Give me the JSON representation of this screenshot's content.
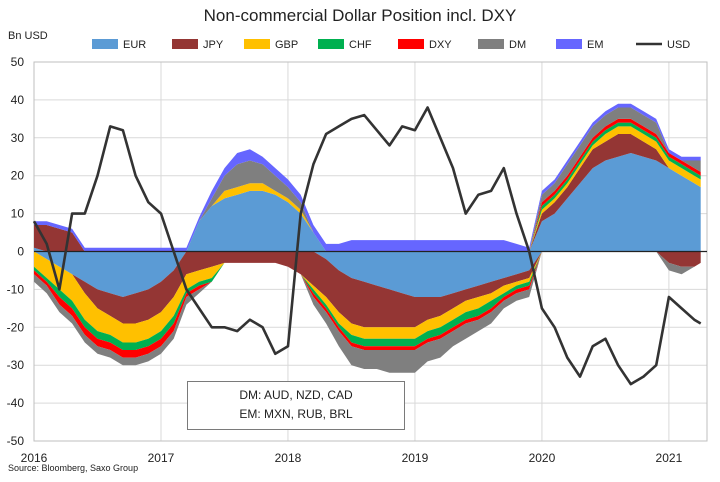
{
  "title": "Non-commercial Dollar Position incl. DXY",
  "unit_label": "Bn USD",
  "source": "Source: Bloomberg, Saxo Group",
  "note": {
    "line1": "DM: AUD, NZD, CAD",
    "line2": "EM: MXN, RUB, BRL"
  },
  "colors": {
    "EUR": "#5b9bd5",
    "JPY": "#943634",
    "GBP": "#ffc000",
    "CHF": "#00b050",
    "DXY": "#ff0000",
    "DM": "#7f7f7f",
    "EM": "#6666ff",
    "USD": "#333333"
  },
  "chart_data": {
    "type": "area",
    "title": "Non-commercial Dollar Position incl. DXY",
    "ylabel": "Bn USD",
    "ylim": [
      -50,
      50
    ],
    "yticks": [
      50,
      40,
      30,
      20,
      10,
      0,
      -10,
      -20,
      -30,
      -40,
      -50
    ],
    "xlim": [
      2016.0,
      2021.3
    ],
    "xticks": [
      {
        "value": 2016,
        "label": "2016"
      },
      {
        "value": 2017,
        "label": "2017"
      },
      {
        "value": 2018,
        "label": "2018"
      },
      {
        "value": 2019,
        "label": "2019"
      },
      {
        "value": 2020,
        "label": "2020"
      },
      {
        "value": 2021,
        "label": "2021"
      }
    ],
    "legend_position": "top",
    "stack_order": [
      "EUR",
      "JPY",
      "GBP",
      "CHF",
      "DXY",
      "DM",
      "EM"
    ],
    "x": [
      2016.0,
      2016.1,
      2016.2,
      2016.3,
      2016.4,
      2016.5,
      2016.6,
      2016.7,
      2016.8,
      2016.9,
      2017.0,
      2017.1,
      2017.2,
      2017.3,
      2017.4,
      2017.5,
      2017.6,
      2017.7,
      2017.8,
      2017.9,
      2018.0,
      2018.1,
      2018.2,
      2018.3,
      2018.4,
      2018.5,
      2018.6,
      2018.7,
      2018.8,
      2018.9,
      2019.0,
      2019.1,
      2019.2,
      2019.3,
      2019.4,
      2019.5,
      2019.6,
      2019.7,
      2019.8,
      2019.9,
      2020.0,
      2020.1,
      2020.2,
      2020.3,
      2020.4,
      2020.5,
      2020.6,
      2020.7,
      2020.8,
      2020.9,
      2021.0,
      2021.1,
      2021.2,
      2021.25
    ],
    "series": [
      {
        "name": "EUR",
        "values": [
          1,
          -2,
          -4,
          -6,
          -8,
          -10,
          -11,
          -12,
          -11,
          -10,
          -8,
          -5,
          0,
          8,
          12,
          14,
          15,
          16,
          16,
          15,
          13,
          10,
          5,
          -2,
          -5,
          -7,
          -8,
          -9,
          -10,
          -11,
          -12,
          -12,
          -12,
          -11,
          -10,
          -9,
          -8,
          -7,
          -6,
          -5,
          8,
          10,
          14,
          18,
          22,
          24,
          25,
          26,
          25,
          24,
          22,
          20,
          18,
          17
        ]
      },
      {
        "name": "JPY",
        "values": [
          6,
          7,
          6,
          5,
          -3,
          -5,
          -6,
          -7,
          -8,
          -8,
          -8,
          -7,
          -6,
          -5,
          -4,
          -3,
          -3,
          -3,
          -3,
          -3,
          -4,
          -6,
          -9,
          -10,
          -11,
          -12,
          -12,
          -11,
          -10,
          -9,
          -8,
          -6,
          -5,
          -4,
          -3,
          -3,
          -3,
          -2,
          -2,
          -2,
          2,
          3,
          3,
          4,
          5,
          5,
          6,
          5,
          4,
          3,
          -3,
          -4,
          -4,
          -3
        ]
      },
      {
        "name": "GBP",
        "values": [
          -4,
          -5,
          -6,
          -7,
          -7,
          -6,
          -5,
          -5,
          -5,
          -5,
          -5,
          -5,
          -4,
          -3,
          -3,
          2,
          2,
          2,
          2,
          1,
          1,
          1,
          -1,
          -2,
          -3,
          -3,
          -3,
          -3,
          -3,
          -3,
          -3,
          -3,
          -3,
          -3,
          -3,
          -3,
          -2,
          -2,
          -1,
          -1,
          1,
          1,
          1,
          1,
          1,
          2,
          2,
          2,
          2,
          2,
          2,
          2,
          2,
          2
        ]
      },
      {
        "name": "CHF",
        "values": [
          -1,
          -1,
          -2,
          -2,
          -2,
          -2,
          -2,
          -2,
          -2,
          -2,
          -2,
          -2,
          -1,
          -1,
          -1,
          0,
          0,
          0,
          0,
          0,
          0,
          0,
          -1,
          -1,
          -1,
          -2,
          -2,
          -2,
          -2,
          -2,
          -2,
          -2,
          -2,
          -2,
          -2,
          -2,
          -2,
          -1,
          -1,
          -1,
          1,
          1,
          1,
          1,
          1,
          1,
          1,
          1,
          1,
          1,
          1,
          1,
          1,
          1
        ]
      },
      {
        "name": "DXY",
        "values": [
          -1,
          -1,
          -2,
          -2,
          -2,
          -2,
          -2,
          -2,
          -2,
          -2,
          -2,
          -2,
          -1,
          -1,
          0,
          0,
          0,
          0,
          0,
          0,
          0,
          0,
          -1,
          -1,
          -1,
          -1,
          -1,
          -1,
          -1,
          -1,
          -1,
          -1,
          -1,
          -1,
          -1,
          -1,
          -1,
          -1,
          -1,
          -1,
          1,
          1,
          1,
          1,
          1,
          1,
          1,
          1,
          1,
          1,
          1,
          1,
          1,
          1
        ]
      },
      {
        "name": "DM",
        "values": [
          -2,
          -2,
          -2,
          -2,
          -2,
          -2,
          -2,
          -2,
          -2,
          -2,
          -2,
          -2,
          -2,
          -1,
          2,
          4,
          6,
          6,
          5,
          4,
          3,
          2,
          -2,
          -3,
          -4,
          -5,
          -5,
          -5,
          -6,
          -6,
          -6,
          -5,
          -5,
          -4,
          -4,
          -3,
          -3,
          -2,
          -2,
          -2,
          2,
          2,
          3,
          3,
          3,
          3,
          3,
          3,
          3,
          3,
          -2,
          -2,
          2,
          3
        ]
      },
      {
        "name": "EM",
        "values": [
          1,
          1,
          1,
          1,
          1,
          1,
          1,
          1,
          1,
          1,
          1,
          1,
          1,
          1,
          2,
          2,
          3,
          3,
          2,
          2,
          2,
          2,
          2,
          2,
          2,
          3,
          3,
          3,
          3,
          3,
          3,
          3,
          3,
          3,
          3,
          3,
          3,
          3,
          2,
          1,
          1,
          1,
          1,
          1,
          1,
          1,
          1,
          1,
          1,
          1,
          1,
          1,
          1,
          1
        ]
      },
      {
        "name": "USD",
        "values": [
          8,
          2,
          -10,
          10,
          10,
          20,
          33,
          32,
          20,
          13,
          10,
          0,
          -10,
          -15,
          -20,
          -20,
          -21,
          -18,
          -20,
          -27,
          -25,
          10,
          23,
          31,
          33,
          35,
          36,
          32,
          28,
          33,
          32,
          38,
          30,
          22,
          10,
          15,
          16,
          22,
          10,
          0,
          -15,
          -20,
          -28,
          -33,
          -25,
          -23,
          -30,
          -35,
          -33,
          -30,
          -12,
          -15,
          -18,
          -19
        ]
      }
    ]
  }
}
